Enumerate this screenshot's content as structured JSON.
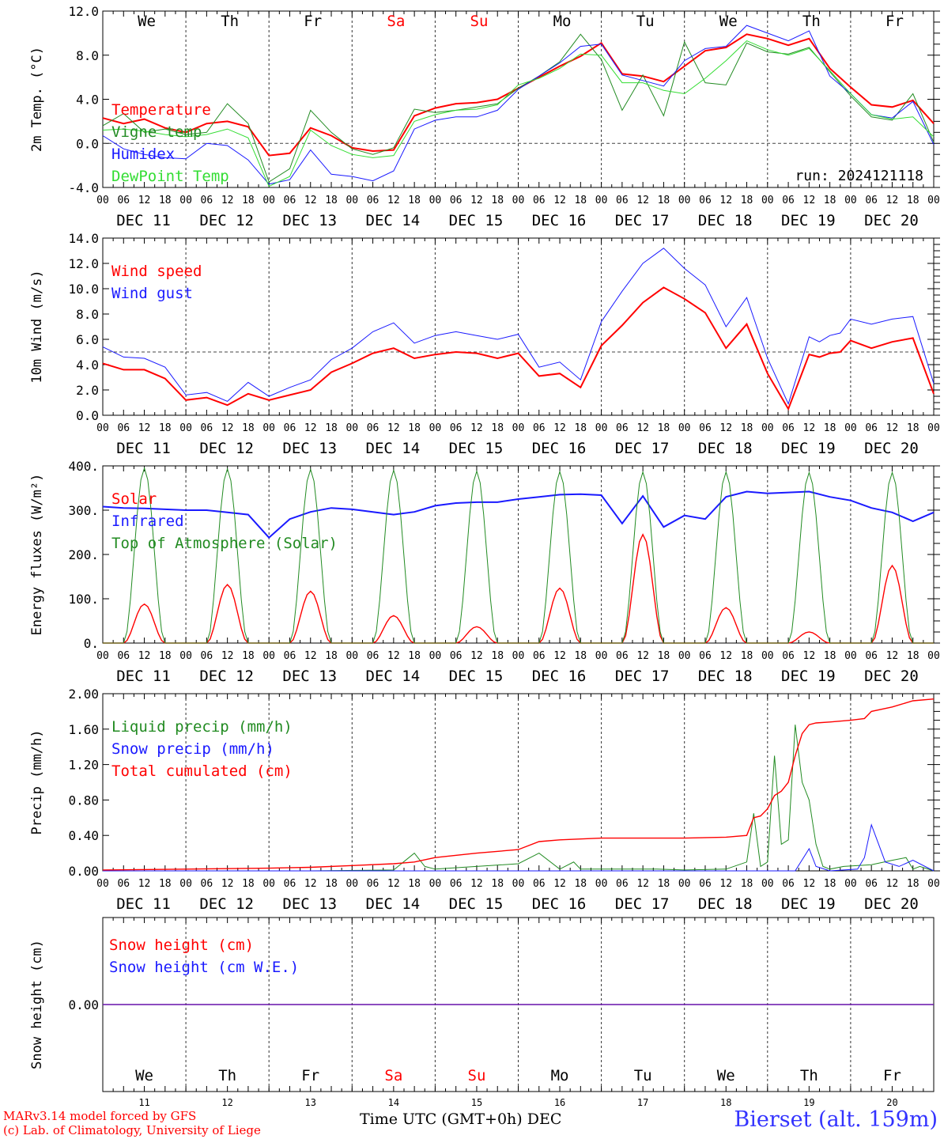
{
  "colors": {
    "red": "#ff0000",
    "green": "#228b22",
    "blue": "#1a1aff",
    "lightgreen": "#33dd33",
    "weekend": "#ff0000",
    "axis": "#000000"
  },
  "days": [
    "We",
    "Th",
    "Fr",
    "Sa",
    "Su",
    "Mo",
    "Tu",
    "We",
    "Th",
    "Fr"
  ],
  "weekend_days": [
    3,
    4
  ],
  "dates": [
    "DEC 11",
    "DEC 12",
    "DEC 13",
    "DEC 14",
    "DEC 15",
    "DEC 16",
    "DEC 17",
    "DEC 18",
    "DEC 19",
    "DEC 20"
  ],
  "bottom_dates": [
    "11",
    "12",
    "13",
    "14",
    "15",
    "16",
    "17",
    "18",
    "19",
    "20"
  ],
  "hour_ticks": [
    "00",
    "06",
    "12",
    "18"
  ],
  "last_hour": "00",
  "footer": {
    "credit1": "MARv3.14 model forced by GFS",
    "credit2": "(c) Lab. of Climatology, University of Liege",
    "xtitle": "Time UTC (GMT+0h) DEC",
    "station": "Bierset (alt. 159m)"
  },
  "chart_data": [
    {
      "type": "line",
      "ylabel": "2m Temp. (°C)",
      "ylim": [
        -4,
        12
      ],
      "yticks": [
        "-4.0",
        "0.0",
        "4.0",
        "8.0",
        "12.0"
      ],
      "ytick_values": [
        -4,
        0,
        4,
        8,
        12
      ],
      "reference_line": 0,
      "annotation": "run: 2024121118",
      "x_unit": "hours since DEC 11 00 UTC",
      "series": [
        {
          "name": "Temperature",
          "color": "#ff0000",
          "width": 2,
          "x": [
            0,
            6,
            12,
            18,
            24,
            30,
            36,
            42,
            48,
            54,
            60,
            66,
            72,
            78,
            84,
            90,
            96,
            102,
            108,
            114,
            120,
            126,
            132,
            138,
            144,
            150,
            156,
            162,
            168,
            174,
            180,
            186,
            192,
            198,
            204,
            210,
            216,
            222,
            228,
            234,
            240
          ],
          "values": [
            2.3,
            1.8,
            2.2,
            1.4,
            1.0,
            1.8,
            2.0,
            1.5,
            -1.1,
            -0.9,
            1.4,
            0.7,
            -0.4,
            -0.7,
            -0.6,
            2.5,
            3.2,
            3.6,
            3.7,
            4.0,
            5.0,
            6.0,
            7.0,
            7.9,
            9.1,
            6.3,
            6.1,
            5.6,
            7.0,
            8.4,
            8.7,
            9.9,
            9.5,
            8.9,
            9.5,
            6.8,
            5.1,
            3.5,
            3.3,
            3.9,
            1.8
          ]
        },
        {
          "name": "Vigne temp",
          "color": "#228b22",
          "width": 1,
          "x": [
            0,
            6,
            12,
            18,
            24,
            30,
            36,
            42,
            48,
            54,
            60,
            66,
            72,
            78,
            84,
            90,
            96,
            102,
            108,
            114,
            120,
            126,
            132,
            138,
            144,
            150,
            156,
            162,
            168,
            174,
            180,
            186,
            192,
            198,
            204,
            210,
            216,
            222,
            228,
            234,
            240
          ],
          "values": [
            1.6,
            2.7,
            1.0,
            1.3,
            0.8,
            1.0,
            3.6,
            1.8,
            -3.5,
            -2.3,
            3.0,
            1.0,
            -0.5,
            -1.0,
            -0.4,
            3.1,
            2.8,
            3.0,
            3.3,
            3.6,
            5.0,
            6.1,
            7.4,
            9.9,
            7.6,
            3.0,
            6.2,
            2.5,
            9.2,
            5.5,
            5.3,
            9.1,
            8.3,
            8.1,
            8.7,
            6.5,
            4.3,
            2.4,
            2.1,
            4.5,
            0.1
          ]
        },
        {
          "name": "Humidex",
          "color": "#1a1aff",
          "width": 1,
          "x": [
            0,
            6,
            12,
            18,
            24,
            30,
            36,
            42,
            48,
            54,
            60,
            66,
            72,
            78,
            84,
            90,
            96,
            102,
            108,
            114,
            120,
            126,
            132,
            138,
            144,
            150,
            156,
            162,
            168,
            174,
            180,
            186,
            192,
            198,
            204,
            210,
            216,
            222,
            228,
            234,
            240
          ],
          "values": [
            0.7,
            -0.5,
            -1.0,
            -1.3,
            -1.4,
            0.0,
            -0.2,
            -1.5,
            -3.7,
            -3.3,
            -0.6,
            -2.8,
            -3.0,
            -3.4,
            -2.5,
            1.3,
            2.1,
            2.4,
            2.4,
            3.0,
            4.9,
            6.1,
            7.3,
            8.8,
            9.0,
            6.2,
            5.7,
            5.2,
            7.5,
            8.6,
            8.8,
            10.7,
            10.0,
            9.3,
            10.2,
            6.1,
            4.5,
            2.6,
            2.3,
            3.8,
            -0.1
          ]
        },
        {
          "name": "DewPoint Temp",
          "color": "#33dd33",
          "width": 1,
          "x": [
            0,
            6,
            12,
            18,
            24,
            30,
            36,
            42,
            48,
            54,
            60,
            66,
            72,
            78,
            84,
            90,
            96,
            102,
            108,
            114,
            120,
            126,
            132,
            138,
            144,
            150,
            156,
            162,
            168,
            174,
            180,
            186,
            192,
            198,
            204,
            210,
            216,
            222,
            228,
            234,
            240
          ],
          "values": [
            1.2,
            1.3,
            1.1,
            0.8,
            0.6,
            0.8,
            1.3,
            0.5,
            -3.9,
            -3.0,
            1.2,
            -0.2,
            -1.0,
            -1.3,
            -1.1,
            2.0,
            2.6,
            3.0,
            3.1,
            3.5,
            5.3,
            5.9,
            6.8,
            8.1,
            8.0,
            5.5,
            5.5,
            4.8,
            4.5,
            5.9,
            7.5,
            9.3,
            8.5,
            8.0,
            8.6,
            6.6,
            4.5,
            2.6,
            2.2,
            2.4,
            0.6
          ]
        }
      ]
    },
    {
      "type": "line",
      "ylabel": "10m Wind (m/s)",
      "ylim": [
        0,
        14
      ],
      "yticks": [
        "0.0",
        "2.0",
        "4.0",
        "6.0",
        "8.0",
        "10.0",
        "12.0",
        "14.0"
      ],
      "ytick_values": [
        0,
        2,
        4,
        6,
        8,
        10,
        12,
        14
      ],
      "reference_line": 5,
      "x_unit": "hours since DEC 11 00 UTC",
      "series": [
        {
          "name": "Wind speed",
          "color": "#ff0000",
          "width": 2,
          "x": [
            0,
            6,
            12,
            18,
            24,
            30,
            36,
            42,
            48,
            54,
            60,
            66,
            72,
            78,
            84,
            90,
            96,
            102,
            108,
            114,
            120,
            126,
            132,
            138,
            144,
            150,
            156,
            162,
            168,
            174,
            180,
            186,
            192,
            198,
            204,
            207,
            210,
            213,
            216,
            222,
            228,
            234,
            240
          ],
          "values": [
            4.1,
            3.6,
            3.6,
            2.9,
            1.2,
            1.4,
            0.8,
            1.7,
            1.2,
            1.6,
            2.0,
            3.4,
            4.1,
            4.9,
            5.3,
            4.5,
            4.8,
            5.0,
            4.9,
            4.5,
            4.9,
            3.1,
            3.3,
            2.2,
            5.5,
            7.1,
            8.9,
            10.1,
            9.2,
            8.1,
            5.3,
            7.2,
            3.3,
            0.5,
            4.8,
            4.6,
            4.9,
            5.0,
            5.9,
            5.3,
            5.8,
            6.1,
            1.7
          ]
        },
        {
          "name": "Wind gust",
          "color": "#1a1aff",
          "width": 1,
          "x": [
            0,
            6,
            12,
            18,
            24,
            30,
            36,
            42,
            48,
            54,
            60,
            66,
            72,
            78,
            84,
            90,
            96,
            102,
            108,
            114,
            120,
            126,
            132,
            138,
            144,
            150,
            156,
            162,
            168,
            174,
            180,
            186,
            192,
            198,
            204,
            207,
            210,
            213,
            216,
            222,
            228,
            234,
            240
          ],
          "values": [
            5.4,
            4.6,
            4.5,
            3.8,
            1.6,
            1.8,
            1.1,
            2.6,
            1.5,
            2.2,
            2.8,
            4.4,
            5.3,
            6.6,
            7.3,
            5.7,
            6.3,
            6.6,
            6.3,
            6.0,
            6.4,
            3.8,
            4.2,
            2.8,
            7.4,
            9.8,
            12.0,
            13.2,
            11.6,
            10.3,
            7.0,
            9.3,
            4.5,
            0.9,
            6.2,
            5.8,
            6.3,
            6.5,
            7.6,
            7.2,
            7.6,
            7.8,
            2.5
          ]
        }
      ]
    },
    {
      "type": "line",
      "ylabel": "Energy fluxes (W/m²)",
      "ylim": [
        0,
        400
      ],
      "yticks": [
        "0.",
        "100.",
        "200.",
        "300.",
        "400."
      ],
      "ytick_values": [
        0,
        100,
        200,
        300,
        400
      ],
      "x_unit": "hours since DEC 11 00 UTC",
      "series": [
        {
          "name": "Solar",
          "color": "#ff0000",
          "width": 1.4,
          "daily_peaks": [
            88,
            132,
            117,
            62,
            37,
            124,
            245,
            80,
            25,
            175
          ]
        },
        {
          "name": "Infrared",
          "color": "#1a1aff",
          "width": 2,
          "x": [
            0,
            6,
            12,
            18,
            24,
            30,
            36,
            42,
            48,
            54,
            60,
            66,
            72,
            78,
            84,
            90,
            96,
            102,
            108,
            114,
            120,
            126,
            132,
            138,
            144,
            150,
            156,
            162,
            168,
            174,
            180,
            186,
            192,
            198,
            204,
            210,
            216,
            222,
            228,
            234,
            240
          ],
          "values": [
            308,
            305,
            304,
            302,
            300,
            300,
            295,
            290,
            238,
            280,
            296,
            305,
            302,
            296,
            290,
            296,
            310,
            316,
            318,
            318,
            325,
            330,
            335,
            336,
            334,
            270,
            332,
            262,
            288,
            280,
            330,
            342,
            338,
            340,
            342,
            330,
            322,
            305,
            295,
            275,
            295
          ]
        },
        {
          "name": "Top of Atmosphere (Solar)",
          "color": "#228b22",
          "width": 1,
          "daily_peaks": [
            395,
            393,
            392,
            390,
            388,
            387,
            386,
            386,
            385,
            385
          ]
        }
      ]
    },
    {
      "type": "line",
      "ylabel": "Precip (mm/h)",
      "ylim": [
        0,
        2
      ],
      "yticks": [
        "0.00",
        "0.40",
        "0.80",
        "1.20",
        "1.60",
        "2.00"
      ],
      "ytick_values": [
        0,
        0.4,
        0.8,
        1.2,
        1.6,
        2.0
      ],
      "x_unit": "hours since DEC 11 00 UTC",
      "series": [
        {
          "name": "Liquid precip (mm/h)",
          "color": "#228b22",
          "width": 1,
          "x": [
            0,
            60,
            84,
            90,
            93,
            96,
            120,
            126,
            132,
            136,
            138,
            160,
            168,
            180,
            186,
            188,
            190,
            192,
            194,
            196,
            198,
            200,
            202,
            204,
            206,
            208,
            210,
            214,
            222,
            228,
            232,
            234,
            236,
            240
          ],
          "values": [
            0,
            0,
            0.01,
            0.2,
            0.05,
            0.02,
            0.08,
            0.2,
            0.02,
            0.1,
            0.02,
            0.02,
            0.01,
            0.02,
            0.1,
            0.65,
            0.05,
            0.1,
            1.3,
            0.3,
            0.35,
            1.65,
            1.0,
            0.8,
            0.3,
            0.05,
            0.02,
            0.05,
            0.07,
            0.12,
            0.15,
            0.02,
            0.05,
            0
          ]
        },
        {
          "name": "Snow precip (mm/h)",
          "color": "#1a1aff",
          "width": 1,
          "x": [
            0,
            190,
            200,
            204,
            206,
            210,
            218,
            220,
            222,
            226,
            230,
            234,
            240
          ],
          "values": [
            0,
            0,
            0,
            0.25,
            0.05,
            0.0,
            0.02,
            0.15,
            0.52,
            0.1,
            0.05,
            0.12,
            0
          ]
        },
        {
          "name": "Total cumulated (cm)",
          "color": "#ff0000",
          "width": 1.4,
          "x": [
            0,
            24,
            48,
            60,
            72,
            84,
            90,
            96,
            108,
            120,
            126,
            132,
            144,
            156,
            168,
            180,
            186,
            188,
            190,
            192,
            194,
            196,
            198,
            200,
            202,
            204,
            206,
            210,
            216,
            220,
            222,
            228,
            234,
            240
          ],
          "values": [
            0.01,
            0.02,
            0.03,
            0.04,
            0.06,
            0.08,
            0.1,
            0.15,
            0.2,
            0.24,
            0.33,
            0.35,
            0.37,
            0.37,
            0.37,
            0.38,
            0.4,
            0.6,
            0.62,
            0.7,
            0.85,
            0.9,
            1.0,
            1.3,
            1.55,
            1.65,
            1.67,
            1.68,
            1.7,
            1.72,
            1.8,
            1.85,
            1.92,
            1.94
          ]
        }
      ]
    },
    {
      "type": "line",
      "ylabel": "Snow height (cm)",
      "ylim": [
        -1,
        1
      ],
      "yticks": [
        "0.00"
      ],
      "ytick_values": [
        0
      ],
      "x_unit": "hours since DEC 11 00 UTC",
      "series": [
        {
          "name": "Snow height (cm)",
          "color": "#ff0000",
          "width": 1.4,
          "x": [
            0,
            240
          ],
          "values": [
            0,
            0
          ]
        },
        {
          "name": "Snow height (cm W.E.)",
          "color": "#1a1aff",
          "width": 1,
          "x": [
            0,
            240
          ],
          "values": [
            0,
            0
          ]
        }
      ]
    }
  ]
}
